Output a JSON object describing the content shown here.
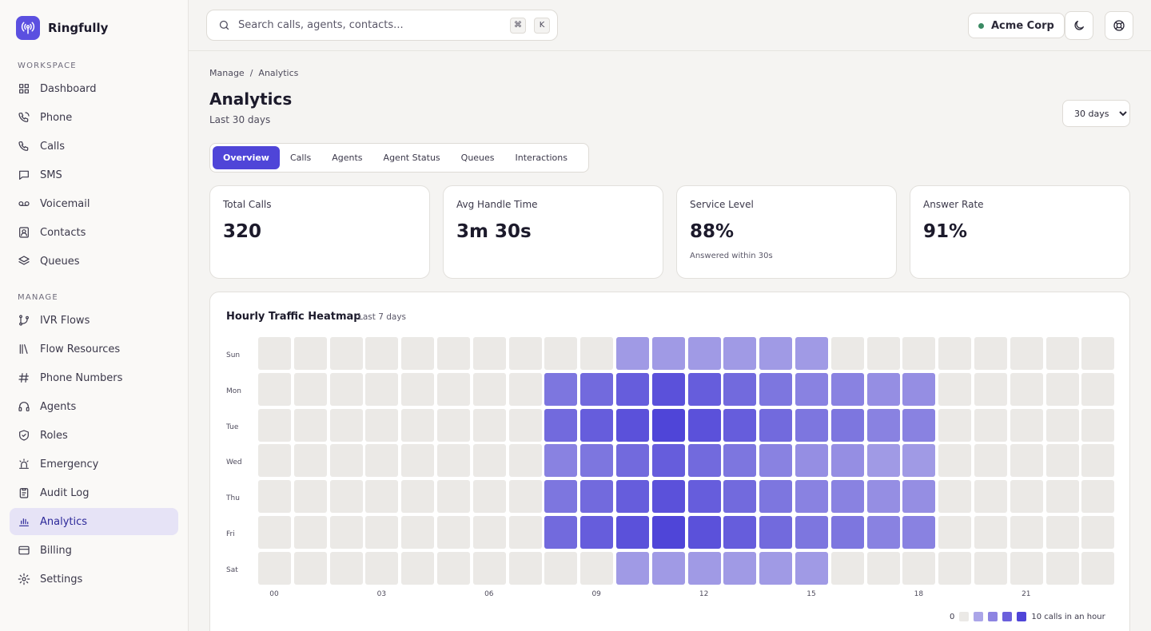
{
  "brand": {
    "name": "Ringfully"
  },
  "sidebar": {
    "workspace_label": "WORKSPACE",
    "manage_label": "MANAGE",
    "workspace_items": [
      {
        "label": "Dashboard",
        "icon": "dashboard-icon"
      },
      {
        "label": "Phone",
        "icon": "phone-ringing-icon"
      },
      {
        "label": "Calls",
        "icon": "phone-icon"
      },
      {
        "label": "SMS",
        "icon": "message-icon"
      },
      {
        "label": "Voicemail",
        "icon": "voicemail-icon"
      },
      {
        "label": "Contacts",
        "icon": "contact-card-icon"
      },
      {
        "label": "Queues",
        "icon": "layers-icon"
      }
    ],
    "manage_items": [
      {
        "label": "IVR Flows",
        "icon": "flow-branch-icon"
      },
      {
        "label": "Flow Resources",
        "icon": "library-icon"
      },
      {
        "label": "Phone Numbers",
        "icon": "hash-icon"
      },
      {
        "label": "Agents",
        "icon": "headset-icon"
      },
      {
        "label": "Roles",
        "icon": "shield-icon"
      },
      {
        "label": "Emergency",
        "icon": "siren-icon"
      },
      {
        "label": "Audit Log",
        "icon": "clipboard-icon"
      },
      {
        "label": "Analytics",
        "icon": "bar-chart-icon",
        "active": true
      },
      {
        "label": "Billing",
        "icon": "credit-card-icon"
      },
      {
        "label": "Settings",
        "icon": "gear-icon"
      }
    ]
  },
  "topbar": {
    "search_placeholder": "Search calls, agents, contacts...",
    "shortcut_keys": [
      "⌘",
      "K"
    ],
    "org_name": "Acme Corp",
    "org_status_color": "#3a8a63"
  },
  "page": {
    "breadcrumb": [
      "Manage",
      "Analytics"
    ],
    "breadcrumb_sep": "/",
    "title": "Analytics",
    "subtitle": "Last 30 days",
    "range_options": [
      "30 days"
    ],
    "range_selected": "30 days",
    "tabs": [
      "Overview",
      "Calls",
      "Agents",
      "Agent Status",
      "Queues",
      "Interactions"
    ],
    "active_tab": "Overview"
  },
  "kpis": [
    {
      "label": "Total Calls",
      "value": "320",
      "note": ""
    },
    {
      "label": "Avg Handle Time",
      "value": "3m 30s",
      "note": ""
    },
    {
      "label": "Service Level",
      "value": "88%",
      "note": "Answered within 30s"
    },
    {
      "label": "Answer Rate",
      "value": "91%",
      "note": ""
    }
  ],
  "chart_data": {
    "type": "heatmap",
    "title": "Hourly Traffic Heatmap",
    "subtitle": "Last 7 days",
    "rows": [
      "Sun",
      "Mon",
      "Tue",
      "Wed",
      "Thu",
      "Fri",
      "Sat"
    ],
    "hour_tick_labels": [
      "00",
      "03",
      "06",
      "09",
      "12",
      "15",
      "18",
      "21"
    ],
    "hours": 24,
    "values": [
      [
        0,
        0,
        0,
        0,
        0,
        0,
        0,
        0,
        0,
        0,
        3,
        3,
        3,
        3,
        3,
        3,
        0,
        0,
        0,
        0,
        0,
        0,
        0,
        0
      ],
      [
        0,
        0,
        0,
        0,
        0,
        0,
        0,
        0,
        6,
        7,
        8,
        9,
        8,
        7,
        6,
        5,
        5,
        4,
        4,
        0,
        0,
        0,
        0,
        0
      ],
      [
        0,
        0,
        0,
        0,
        0,
        0,
        0,
        0,
        7,
        8,
        9,
        10,
        9,
        8,
        7,
        6,
        6,
        5,
        5,
        0,
        0,
        0,
        0,
        0
      ],
      [
        0,
        0,
        0,
        0,
        0,
        0,
        0,
        0,
        5,
        6,
        7,
        8,
        7,
        6,
        5,
        4,
        4,
        3,
        3,
        0,
        0,
        0,
        0,
        0
      ],
      [
        0,
        0,
        0,
        0,
        0,
        0,
        0,
        0,
        6,
        7,
        8,
        9,
        8,
        7,
        6,
        5,
        5,
        4,
        4,
        0,
        0,
        0,
        0,
        0
      ],
      [
        0,
        0,
        0,
        0,
        0,
        0,
        0,
        0,
        7,
        8,
        9,
        10,
        9,
        8,
        7,
        6,
        6,
        5,
        5,
        0,
        0,
        0,
        0,
        0
      ],
      [
        0,
        0,
        0,
        0,
        0,
        0,
        0,
        0,
        0,
        0,
        3,
        3,
        3,
        3,
        3,
        3,
        0,
        0,
        0,
        0,
        0,
        0,
        0,
        0
      ]
    ],
    "scale_max": 10,
    "legend_min_label": "0",
    "legend_max_label": "10 calls in an hour",
    "legend_colors": [
      "#ebe9e6",
      "#aba5e8",
      "#8d84e2",
      "#6b60dc",
      "#4f45d8"
    ],
    "empty_color": "#ebe9e6",
    "accent_color": "#4f45d8"
  }
}
